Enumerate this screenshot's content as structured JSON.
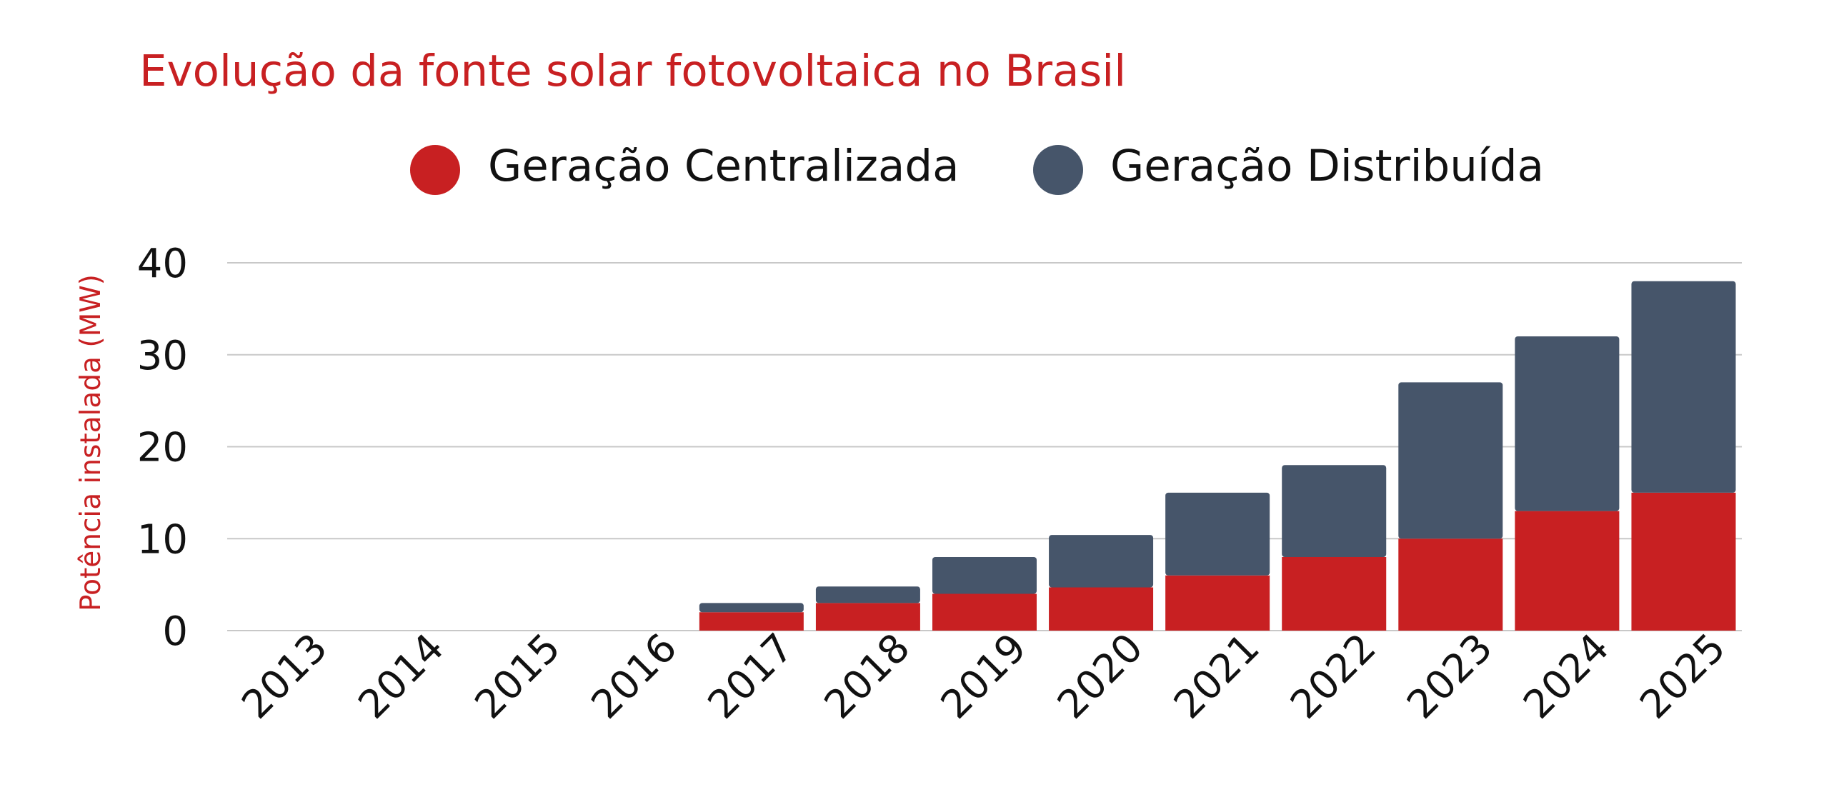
{
  "chart_data": {
    "type": "bar",
    "stacked": true,
    "title": "Evolução da fonte solar fotovoltaica no Brasil",
    "xlabel": "",
    "ylabel": "Potência instalada (MW)",
    "categories": [
      "2013",
      "2014",
      "2015",
      "2016",
      "2017",
      "2018",
      "2019",
      "2020",
      "2021",
      "2022",
      "2023",
      "2024",
      "2025"
    ],
    "series": [
      {
        "name": "Geração Centralizada",
        "color": "#c82022",
        "values": [
          0,
          0,
          0,
          0,
          2,
          3,
          4,
          4.7,
          6,
          8,
          10,
          13,
          15
        ]
      },
      {
        "name": "Geração Distribuída",
        "color": "#46556a",
        "values": [
          0,
          0,
          0,
          0,
          1,
          1.8,
          4,
          5.7,
          9,
          10,
          17,
          19,
          23
        ]
      }
    ],
    "ylim": [
      0,
      40
    ],
    "yticks": [
      "0",
      "10",
      "20",
      "30",
      "40"
    ],
    "grid": true,
    "legend_position": "top"
  },
  "colors": {
    "title": "#c82022",
    "ylabel": "#c82022",
    "tick_text": "#111111",
    "grid": "#c8c8c8"
  }
}
